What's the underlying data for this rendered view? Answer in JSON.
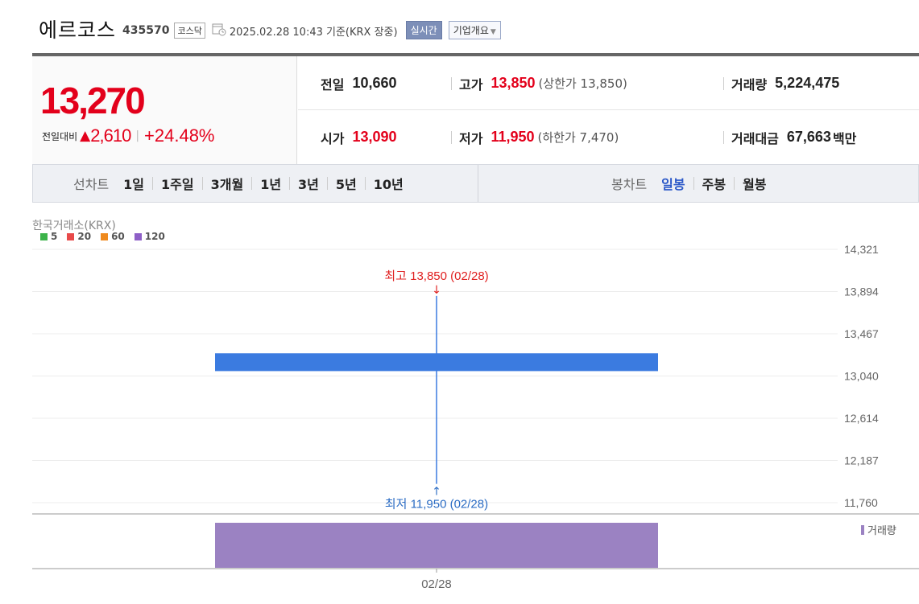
{
  "header": {
    "name": "에르코스",
    "code": "435570",
    "market": "코스닥",
    "date": "2025.02.28 10:43  기준(KRX 장중)",
    "realtime_label": "실시간",
    "corp_label": "기업개요"
  },
  "price": {
    "current": "13,270",
    "change_label": "전일대비",
    "change_amount": "2,610",
    "change_pct": "+24.48%",
    "direction": "up"
  },
  "stats": {
    "prev_close": {
      "label": "전일",
      "value": "10,660"
    },
    "high": {
      "label": "고가",
      "value": "13,850",
      "sub": "(상한가 13,850)"
    },
    "volume": {
      "label": "거래량",
      "value": "5,224,475"
    },
    "open": {
      "label": "시가",
      "value": "13,090"
    },
    "low": {
      "label": "저가",
      "value": "11,950",
      "sub": "(하한가 7,470)"
    },
    "trade_value": {
      "label": "거래대금",
      "value": "67,663",
      "unit": "백만"
    }
  },
  "tabs": {
    "line_title": "선차트",
    "line": [
      "1일",
      "1주일",
      "3개월",
      "1년",
      "3년",
      "5년",
      "10년"
    ],
    "candle_title": "봉차트",
    "candle": [
      "일봉",
      "주봉",
      "월봉"
    ],
    "candle_active": 0
  },
  "chart_meta": {
    "exchange": "한국거래소(KRX)",
    "legend": [
      {
        "label": "5",
        "color": "#3cb34a"
      },
      {
        "label": "20",
        "color": "#e84a4a"
      },
      {
        "label": "60",
        "color": "#ef8a1e"
      },
      {
        "label": "120",
        "color": "#8e5fc7"
      }
    ]
  },
  "chart_data": {
    "type": "candlestick",
    "x": [
      "02/28"
    ],
    "open": [
      13090
    ],
    "high": [
      13850
    ],
    "low": [
      11950
    ],
    "close": [
      13270
    ],
    "volume": [
      5224475
    ],
    "y_ticks": [
      "14,321",
      "13,894",
      "13,467",
      "13,040",
      "12,614",
      "12,187",
      "11,760"
    ],
    "ylim": [
      11760,
      14321
    ],
    "high_annotation": "최고 13,850 (02/28)",
    "low_annotation": "최저 11,950 (02/28)",
    "volume_legend": "거래량",
    "colors": {
      "candle": "#3b7be0",
      "volume": "#9b82c2",
      "high_text": "#e02020",
      "low_text": "#2b6cc4"
    }
  }
}
